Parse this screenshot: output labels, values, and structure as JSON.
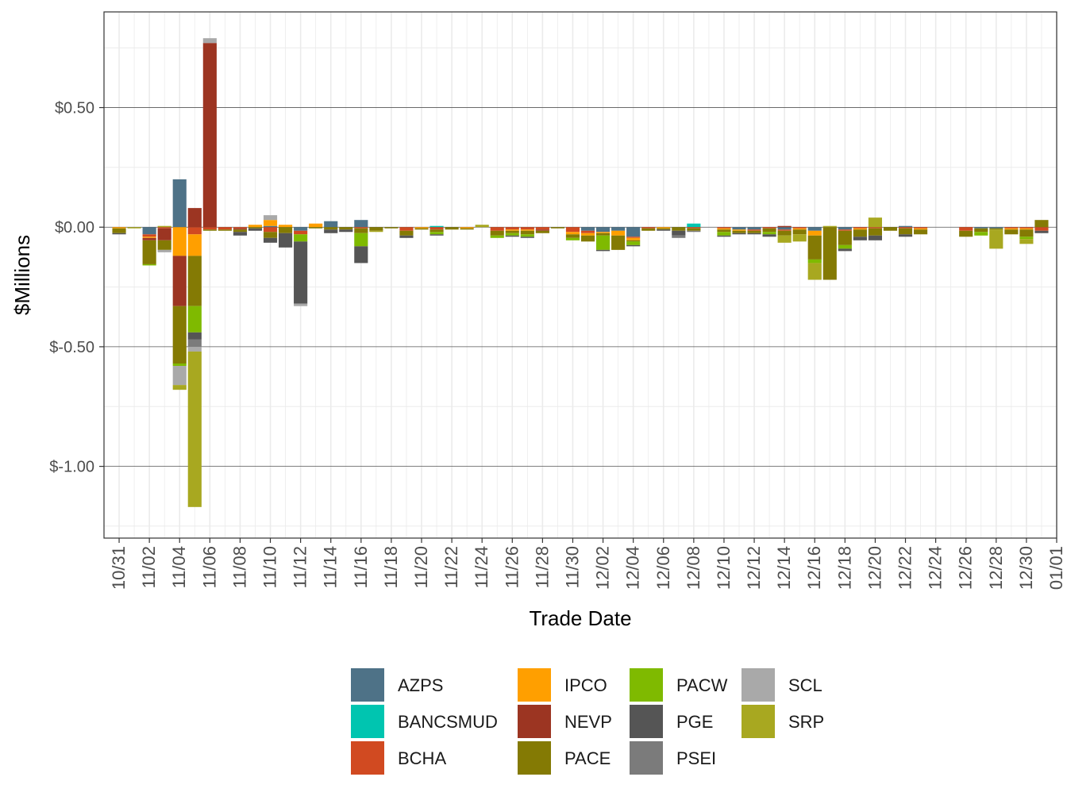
{
  "chart_data": {
    "type": "bar",
    "stacked": true,
    "xlabel": "Trade Date",
    "ylabel": "$Millions",
    "ylim": [
      -1.3,
      0.9
    ],
    "y_ticks": [
      {
        "value": 0.5,
        "label": "$0.50"
      },
      {
        "value": 0.0,
        "label": "$0.00"
      },
      {
        "value": -0.5,
        "label": "$-0.50"
      },
      {
        "value": -1.0,
        "label": "$-1.00"
      }
    ],
    "x_tick_labels": [
      "10/31",
      "11/02",
      "11/04",
      "11/06",
      "11/08",
      "11/10",
      "11/12",
      "11/14",
      "11/16",
      "11/18",
      "11/20",
      "11/22",
      "11/24",
      "11/26",
      "11/28",
      "11/30",
      "12/02",
      "12/04",
      "12/06",
      "12/08",
      "12/10",
      "12/12",
      "12/14",
      "12/16",
      "12/18",
      "12/20",
      "12/22",
      "12/24",
      "12/26",
      "12/28",
      "12/30",
      "01/01"
    ],
    "categories": [
      "10/31",
      "11/01",
      "11/02",
      "11/03",
      "11/04",
      "11/05",
      "11/06",
      "11/07",
      "11/08",
      "11/09",
      "11/10",
      "11/11",
      "11/12",
      "11/13",
      "11/14",
      "11/15",
      "11/16",
      "11/17",
      "11/18",
      "11/19",
      "11/20",
      "11/21",
      "11/22",
      "11/23",
      "11/24",
      "11/25",
      "11/26",
      "11/27",
      "11/28",
      "11/29",
      "11/30",
      "12/01",
      "12/02",
      "12/03",
      "12/04",
      "12/05",
      "12/06",
      "12/07",
      "12/08",
      "12/09",
      "12/10",
      "12/11",
      "12/12",
      "12/13",
      "12/14",
      "12/15",
      "12/16",
      "12/17",
      "12/18",
      "12/19",
      "12/20",
      "12/21",
      "12/22",
      "12/23",
      "12/24",
      "12/25",
      "12/26",
      "12/27",
      "12/28",
      "12/29",
      "12/30",
      "12/31"
    ],
    "legend_position": "bottom",
    "grid": true,
    "series": [
      {
        "name": "AZPS",
        "color": "#4e7287",
        "values": [
          0,
          0,
          -0.03,
          0,
          0.2,
          0,
          0,
          0,
          0,
          0,
          0.005,
          0,
          -0.015,
          0,
          0.025,
          0,
          0.03,
          0,
          0,
          0,
          0,
          0,
          0,
          0,
          0,
          0,
          0,
          0,
          0,
          0,
          0,
          -0.015,
          -0.02,
          -0.015,
          -0.04,
          0,
          0,
          0,
          0,
          0,
          0,
          -0.01,
          -0.01,
          0,
          -0.01,
          0,
          -0.015,
          0,
          -0.01,
          0,
          0,
          0,
          0.005,
          0,
          0,
          0,
          0,
          -0.005,
          -0.005,
          0,
          0,
          0
        ]
      },
      {
        "name": "BANCSMUD",
        "color": "#00c5b0",
        "values": [
          0,
          0,
          0,
          0,
          0,
          0,
          0,
          0,
          0,
          0,
          0,
          0,
          0,
          0,
          0,
          0,
          0,
          0,
          0,
          0,
          0,
          0.005,
          0,
          0,
          0,
          0,
          0,
          0,
          0,
          0,
          0,
          0,
          0,
          0,
          0,
          0,
          0,
          0,
          0.015,
          0,
          0,
          0,
          0,
          0,
          0,
          0,
          0,
          0,
          0,
          0,
          0,
          0,
          0,
          0,
          0,
          0,
          0,
          0,
          0,
          0,
          0,
          0
        ]
      },
      {
        "name": "BCHA",
        "color": "#d14a21",
        "values": [
          0,
          0,
          -0.01,
          -0.005,
          0,
          -0.03,
          -0.01,
          -0.01,
          -0.005,
          0,
          -0.02,
          0,
          -0.015,
          0,
          0,
          0,
          -0.005,
          0,
          0,
          -0.015,
          0,
          -0.01,
          0,
          0,
          0,
          -0.015,
          -0.01,
          -0.01,
          -0.01,
          0,
          -0.02,
          -0.01,
          0,
          0,
          -0.005,
          -0.005,
          0,
          0,
          -0.005,
          0,
          -0.005,
          0,
          -0.005,
          -0.005,
          -0.005,
          -0.005,
          0,
          0,
          -0.005,
          -0.005,
          -0.005,
          0,
          -0.005,
          -0.005,
          0,
          0,
          -0.015,
          0,
          0,
          -0.005,
          -0.005,
          -0.015
        ]
      },
      {
        "name": "IPCO",
        "color": "#ff9f00",
        "values": [
          -0.005,
          0,
          -0.005,
          0,
          -0.12,
          -0.09,
          0,
          0,
          0,
          0.01,
          0.025,
          0.01,
          0,
          0.015,
          0,
          0,
          0,
          0,
          0,
          0,
          -0.005,
          0,
          0,
          -0.005,
          0,
          0,
          -0.005,
          -0.005,
          0,
          0,
          -0.01,
          -0.01,
          -0.005,
          -0.02,
          -0.01,
          0,
          -0.005,
          0,
          0,
          0,
          -0.005,
          -0.005,
          0,
          0,
          0,
          -0.005,
          -0.02,
          0,
          0,
          -0.005,
          0,
          0,
          0,
          -0.005,
          0,
          0,
          0,
          0,
          0,
          -0.005,
          -0.005,
          0
        ]
      },
      {
        "name": "NEVP",
        "color": "#9c3522",
        "values": [
          0,
          0,
          -0.01,
          -0.05,
          -0.21,
          0.08,
          0.77,
          0,
          -0.005,
          0,
          0,
          0,
          0,
          0,
          0,
          0,
          0,
          0,
          0,
          0,
          0,
          0,
          0,
          0,
          0,
          0,
          0,
          0,
          -0.005,
          0,
          0,
          0,
          0,
          0,
          0,
          0,
          0,
          0,
          0,
          0,
          0,
          0,
          0,
          0,
          0.005,
          0,
          0,
          0,
          0,
          0,
          0,
          0,
          0,
          0,
          0,
          0,
          0,
          0,
          0,
          0,
          0,
          0
        ]
      },
      {
        "name": "PACE",
        "color": "#847a04",
        "values": [
          -0.02,
          0,
          -0.1,
          -0.04,
          -0.24,
          -0.21,
          -0.005,
          -0.005,
          -0.01,
          -0.005,
          -0.025,
          -0.025,
          0,
          -0.005,
          -0.01,
          -0.01,
          -0.02,
          -0.015,
          -0.005,
          -0.02,
          -0.005,
          -0.01,
          -0.01,
          -0.005,
          0,
          -0.02,
          -0.01,
          -0.015,
          -0.01,
          -0.005,
          -0.015,
          -0.025,
          -0.01,
          -0.06,
          -0.005,
          -0.01,
          -0.005,
          -0.015,
          -0.01,
          0,
          -0.01,
          -0.01,
          -0.01,
          -0.015,
          -0.02,
          -0.02,
          -0.1,
          -0.22,
          -0.06,
          -0.03,
          -0.03,
          -0.015,
          -0.025,
          -0.02,
          0,
          0,
          -0.025,
          -0.015,
          -0.005,
          -0.02,
          -0.03,
          0.03
        ]
      },
      {
        "name": "PACW",
        "color": "#7fba00",
        "values": [
          0,
          0,
          -0.005,
          0,
          -0.01,
          -0.11,
          0,
          0,
          0,
          0,
          0,
          0,
          -0.03,
          0,
          0,
          0,
          -0.055,
          0,
          0,
          0,
          0,
          -0.01,
          0,
          0,
          0,
          -0.01,
          -0.01,
          -0.01,
          0,
          0,
          -0.01,
          0,
          -0.06,
          0,
          -0.015,
          0,
          0,
          0,
          0,
          0,
          -0.015,
          0,
          0,
          -0.01,
          0,
          0,
          -0.015,
          0,
          -0.015,
          0,
          0,
          0,
          0,
          0,
          0,
          0,
          0,
          -0.015,
          0,
          0,
          -0.01,
          0
        ]
      },
      {
        "name": "PGE",
        "color": "#555555",
        "values": [
          -0.005,
          0,
          0,
          0,
          0,
          -0.03,
          0,
          0,
          -0.015,
          -0.01,
          -0.02,
          -0.06,
          -0.26,
          0,
          -0.015,
          -0.01,
          -0.07,
          0,
          0,
          -0.01,
          0,
          -0.005,
          0,
          0,
          0,
          0,
          -0.005,
          -0.005,
          0,
          0,
          0,
          0,
          -0.005,
          0,
          -0.005,
          0,
          -0.005,
          -0.02,
          0,
          0,
          -0.005,
          -0.005,
          -0.005,
          -0.01,
          0,
          0,
          0,
          0,
          -0.01,
          -0.015,
          -0.02,
          0,
          -0.01,
          0,
          0,
          0,
          0,
          0,
          0,
          0,
          0,
          -0.01
        ]
      },
      {
        "name": "PSEI",
        "color": "#7b7b7b",
        "values": [
          0,
          0,
          0,
          0,
          0,
          -0.03,
          0,
          0,
          0,
          0,
          0,
          0,
          0,
          0,
          0,
          0,
          0,
          0,
          0,
          0,
          0,
          0,
          0,
          0,
          0,
          0,
          0,
          0,
          0,
          0,
          0,
          0,
          0,
          0,
          0,
          0,
          0,
          -0.01,
          -0.005,
          0,
          0,
          0,
          0,
          0,
          0,
          0,
          0,
          0,
          0,
          0,
          0,
          0,
          0,
          0,
          0,
          0,
          0,
          0,
          0,
          0,
          0,
          0
        ]
      },
      {
        "name": "SCL",
        "color": "#a9a9a9",
        "values": [
          0,
          0,
          0,
          -0.01,
          -0.08,
          -0.02,
          0.02,
          0,
          0,
          0,
          0.02,
          0,
          -0.01,
          0,
          0,
          0,
          0,
          0,
          0,
          0,
          0,
          0,
          0,
          0,
          0,
          0,
          0,
          0,
          0,
          0,
          0,
          0,
          0,
          0,
          0,
          0,
          0,
          0,
          0,
          0,
          0,
          0,
          0,
          0,
          0,
          0,
          0,
          0,
          0,
          0,
          0,
          0,
          0,
          0,
          0,
          0,
          0,
          0,
          0,
          0,
          0,
          0
        ]
      },
      {
        "name": "SRP",
        "color": "#a8a820",
        "values": [
          0,
          -0.005,
          0,
          0.005,
          -0.02,
          -0.65,
          0,
          0,
          0,
          0,
          0,
          0,
          0,
          0,
          0,
          0,
          0,
          -0.005,
          0,
          0,
          0,
          0,
          0,
          0,
          0.01,
          0,
          0,
          0,
          0,
          0,
          0,
          0,
          0,
          0,
          0,
          0,
          0,
          0,
          0,
          0,
          0,
          0,
          0,
          0,
          -0.03,
          -0.03,
          -0.07,
          0.005,
          0,
          0,
          0.04,
          0,
          0,
          0,
          0,
          0,
          0,
          0,
          -0.08,
          0,
          -0.02,
          0
        ]
      }
    ]
  }
}
